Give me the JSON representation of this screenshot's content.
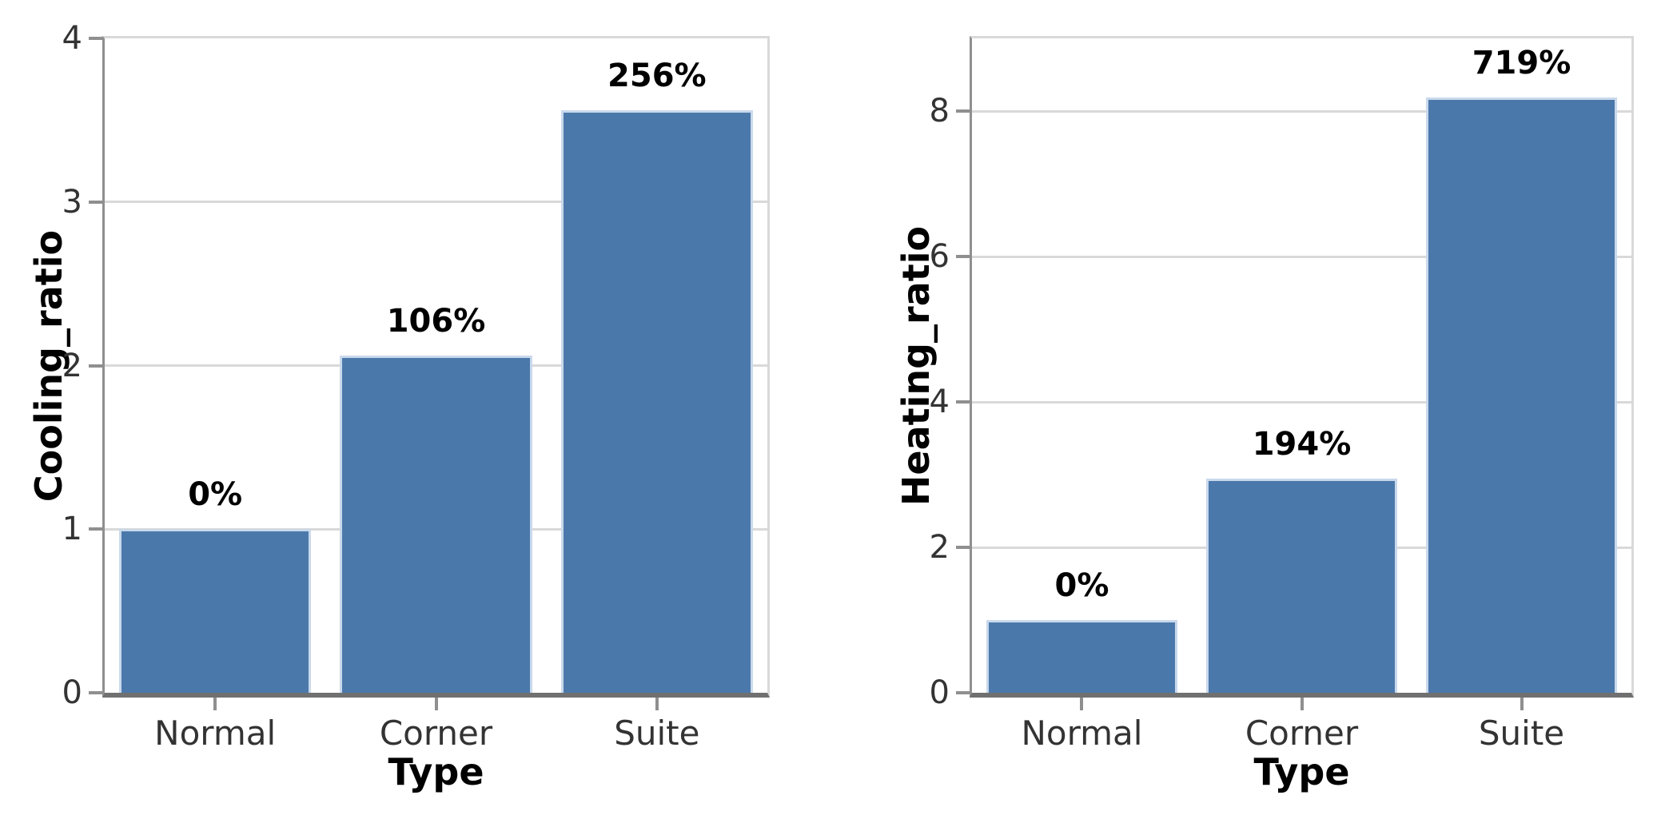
{
  "chart_data": [
    {
      "type": "bar",
      "categories": [
        "Normal",
        "Corner",
        "Suite"
      ],
      "values": [
        1.0,
        2.06,
        3.56
      ],
      "bar_labels": [
        "0%",
        "106%",
        "256%"
      ],
      "xlabel": "Type",
      "ylabel": "Cooling_ratio",
      "ylim": [
        0,
        4
      ],
      "yticks": [
        0,
        1,
        2,
        3,
        4
      ],
      "grid": true,
      "legend": false,
      "bar_color": "#4b78aa",
      "bar_edge_color": "#c9d9ec"
    },
    {
      "type": "bar",
      "categories": [
        "Normal",
        "Corner",
        "Suite"
      ],
      "values": [
        1.0,
        2.94,
        8.19
      ],
      "bar_labels": [
        "0%",
        "194%",
        "719%"
      ],
      "xlabel": "Type",
      "ylabel": "Heating_ratio",
      "ylim": [
        0,
        9
      ],
      "yticks": [
        0,
        2,
        4,
        6,
        8
      ],
      "grid": true,
      "legend": false,
      "bar_color": "#4b78aa",
      "bar_edge_color": "#c9d9ec"
    }
  ],
  "colors": {
    "bar_fill": "#4b78aa",
    "bar_edge": "#c9d9ec",
    "gridline": "#d9d9d9",
    "spine_left": "#8f8f8f",
    "spine_bottom": "#707070",
    "spine_light": "#d9d9d9",
    "tick_label": "#333333",
    "value_label": "#000000"
  }
}
